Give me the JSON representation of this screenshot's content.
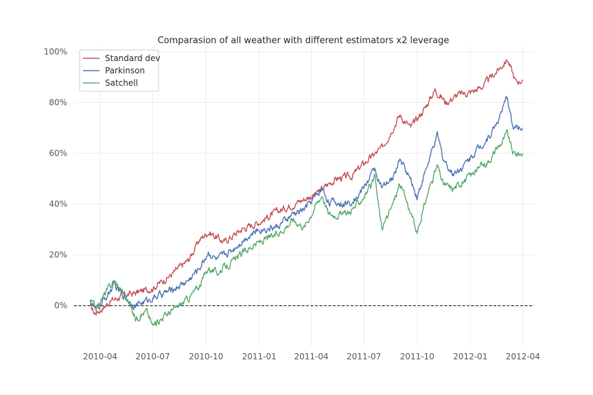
{
  "chart_data": {
    "type": "line",
    "title": "Comparasion of all weather with different estimators x2 leverage",
    "xlabel": "",
    "ylabel": "",
    "x_start": "2010-03-15",
    "x_end": "2012-03-31",
    "xlim": [
      "2010-02-15",
      "2012-04-20"
    ],
    "ylim": [
      -0.16,
      1.02
    ],
    "x_ticks": [
      "2010-04-01",
      "2010-07-01",
      "2010-10-01",
      "2011-01-01",
      "2011-04-01",
      "2011-07-01",
      "2011-10-01",
      "2012-01-01",
      "2012-04-01"
    ],
    "x_tick_labels": [
      "2010-04",
      "2010-07",
      "2010-10",
      "2011-01",
      "2011-04",
      "2011-07",
      "2011-10",
      "2012-01",
      "2012-04"
    ],
    "y_ticks": [
      0,
      0.2,
      0.4,
      0.6,
      0.8,
      1.0
    ],
    "y_tick_labels": [
      "0%",
      "20%",
      "40%",
      "60%",
      "80%",
      "100%"
    ],
    "grid": true,
    "zero_line": "dashed",
    "legend_position": "top-left",
    "series": [
      {
        "name": "Standard dev",
        "color": "#c44e52",
        "anchors": [
          [
            "2010-03-15",
            0.0
          ],
          [
            "2010-03-22",
            -0.03
          ],
          [
            "2010-04-05",
            -0.01
          ],
          [
            "2010-04-20",
            0.02
          ],
          [
            "2010-05-10",
            0.04
          ],
          [
            "2010-06-01",
            0.05
          ],
          [
            "2010-07-01",
            0.07
          ],
          [
            "2010-08-01",
            0.12
          ],
          [
            "2010-09-01",
            0.18
          ],
          [
            "2010-09-20",
            0.26
          ],
          [
            "2010-10-05",
            0.29
          ],
          [
            "2010-10-20",
            0.27
          ],
          [
            "2010-11-01",
            0.25
          ],
          [
            "2010-12-01",
            0.3
          ],
          [
            "2011-01-01",
            0.33
          ],
          [
            "2011-02-01",
            0.37
          ],
          [
            "2011-03-01",
            0.4
          ],
          [
            "2011-03-20",
            0.42
          ],
          [
            "2011-04-10",
            0.44
          ],
          [
            "2011-05-01",
            0.48
          ],
          [
            "2011-05-15",
            0.5
          ],
          [
            "2011-06-10",
            0.51
          ],
          [
            "2011-07-01",
            0.56
          ],
          [
            "2011-08-01",
            0.62
          ],
          [
            "2011-08-20",
            0.7
          ],
          [
            "2011-09-01",
            0.75
          ],
          [
            "2011-09-20",
            0.7
          ],
          [
            "2011-10-15",
            0.78
          ],
          [
            "2011-11-01",
            0.85
          ],
          [
            "2011-11-20",
            0.8
          ],
          [
            "2011-12-10",
            0.83
          ],
          [
            "2012-01-01",
            0.84
          ],
          [
            "2012-01-20",
            0.86
          ],
          [
            "2012-02-15",
            0.92
          ],
          [
            "2012-03-05",
            0.97
          ],
          [
            "2012-03-20",
            0.88
          ],
          [
            "2012-03-31",
            0.89
          ]
        ]
      },
      {
        "name": "Parkinson",
        "color": "#4c72b0",
        "anchors": [
          [
            "2010-03-15",
            0.02
          ],
          [
            "2010-03-25",
            -0.02
          ],
          [
            "2010-04-10",
            0.03
          ],
          [
            "2010-04-25",
            0.08
          ],
          [
            "2010-05-15",
            0.03
          ],
          [
            "2010-06-01",
            0.0
          ],
          [
            "2010-06-20",
            0.02
          ],
          [
            "2010-07-01",
            0.03
          ],
          [
            "2010-08-01",
            0.06
          ],
          [
            "2010-09-01",
            0.1
          ],
          [
            "2010-09-20",
            0.15
          ],
          [
            "2010-10-05",
            0.21
          ],
          [
            "2010-10-20",
            0.18
          ],
          [
            "2010-11-15",
            0.22
          ],
          [
            "2010-12-10",
            0.27
          ],
          [
            "2011-01-01",
            0.3
          ],
          [
            "2011-02-01",
            0.31
          ],
          [
            "2011-03-01",
            0.36
          ],
          [
            "2011-03-20",
            0.38
          ],
          [
            "2011-04-05",
            0.42
          ],
          [
            "2011-04-20",
            0.46
          ],
          [
            "2011-05-01",
            0.41
          ],
          [
            "2011-06-01",
            0.4
          ],
          [
            "2011-06-20",
            0.43
          ],
          [
            "2011-07-10",
            0.5
          ],
          [
            "2011-07-20",
            0.54
          ],
          [
            "2011-08-01",
            0.46
          ],
          [
            "2011-08-20",
            0.5
          ],
          [
            "2011-09-01",
            0.58
          ],
          [
            "2011-09-15",
            0.52
          ],
          [
            "2011-10-01",
            0.43
          ],
          [
            "2011-10-20",
            0.56
          ],
          [
            "2011-11-05",
            0.67
          ],
          [
            "2011-11-15",
            0.58
          ],
          [
            "2011-12-01",
            0.52
          ],
          [
            "2011-12-20",
            0.55
          ],
          [
            "2012-01-10",
            0.61
          ],
          [
            "2012-02-01",
            0.66
          ],
          [
            "2012-02-20",
            0.74
          ],
          [
            "2012-03-05",
            0.82
          ],
          [
            "2012-03-15",
            0.7
          ],
          [
            "2012-03-31",
            0.7
          ]
        ]
      },
      {
        "name": "Satchell",
        "color": "#55a868",
        "anchors": [
          [
            "2010-03-15",
            0.02
          ],
          [
            "2010-03-25",
            -0.01
          ],
          [
            "2010-04-10",
            0.05
          ],
          [
            "2010-04-25",
            0.1
          ],
          [
            "2010-05-15",
            0.04
          ],
          [
            "2010-06-01",
            -0.05
          ],
          [
            "2010-06-20",
            -0.02
          ],
          [
            "2010-07-01",
            -0.08
          ],
          [
            "2010-07-20",
            -0.04
          ],
          [
            "2010-08-10",
            -0.01
          ],
          [
            "2010-09-01",
            0.03
          ],
          [
            "2010-09-20",
            0.08
          ],
          [
            "2010-10-05",
            0.15
          ],
          [
            "2010-10-20",
            0.13
          ],
          [
            "2010-11-15",
            0.17
          ],
          [
            "2010-12-10",
            0.22
          ],
          [
            "2011-01-01",
            0.25
          ],
          [
            "2011-02-01",
            0.28
          ],
          [
            "2011-03-01",
            0.34
          ],
          [
            "2011-03-20",
            0.31
          ],
          [
            "2011-04-05",
            0.38
          ],
          [
            "2011-04-20",
            0.44
          ],
          [
            "2011-05-01",
            0.36
          ],
          [
            "2011-06-01",
            0.36
          ],
          [
            "2011-06-20",
            0.4
          ],
          [
            "2011-07-10",
            0.46
          ],
          [
            "2011-07-20",
            0.5
          ],
          [
            "2011-08-01",
            0.3
          ],
          [
            "2011-08-20",
            0.4
          ],
          [
            "2011-09-01",
            0.48
          ],
          [
            "2011-09-15",
            0.4
          ],
          [
            "2011-10-01",
            0.28
          ],
          [
            "2011-10-20",
            0.45
          ],
          [
            "2011-11-05",
            0.55
          ],
          [
            "2011-11-15",
            0.48
          ],
          [
            "2011-12-01",
            0.46
          ],
          [
            "2011-12-20",
            0.49
          ],
          [
            "2012-01-10",
            0.53
          ],
          [
            "2012-02-01",
            0.57
          ],
          [
            "2012-02-20",
            0.63
          ],
          [
            "2012-03-05",
            0.68
          ],
          [
            "2012-03-15",
            0.6
          ],
          [
            "2012-03-31",
            0.6
          ]
        ]
      }
    ]
  }
}
